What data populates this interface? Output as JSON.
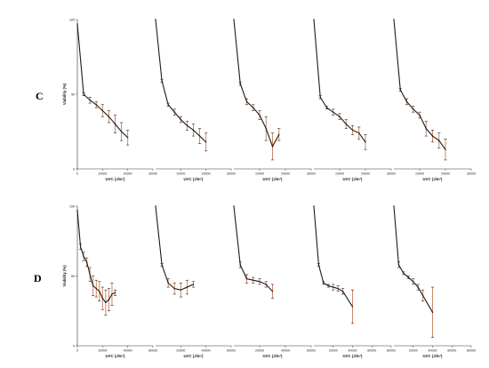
{
  "rows": [
    {
      "label": "C"
    },
    {
      "label": "D"
    }
  ],
  "colors": {
    "line": "#1a1a1a",
    "error_bar": "#c87b55",
    "axis": "#333333"
  },
  "chart_data": [
    {
      "type": "line",
      "row": "C",
      "panel": 1,
      "xlabel": "UVC (J/m²)",
      "ylabel": "Viability (%)",
      "xlim": [
        0,
        30000
      ],
      "ylim": [
        0,
        100
      ],
      "x_ticks": [
        0,
        10000,
        20000,
        30000
      ],
      "y_ticks": [
        0,
        50,
        100
      ],
      "show_y_axis": true,
      "show_x_tick_zero": true,
      "x": [
        0,
        2500,
        5000,
        7500,
        10000,
        12500,
        15000,
        17500,
        20000
      ],
      "y": [
        97,
        50,
        46,
        43,
        39,
        35,
        30,
        25,
        21
      ],
      "err": [
        0,
        1,
        2,
        2,
        4,
        4,
        6,
        6,
        5
      ]
    },
    {
      "type": "line",
      "row": "C",
      "panel": 2,
      "xlabel": "UVC (J/m²)",
      "xlim": [
        0,
        30000
      ],
      "ylim": [
        0,
        100
      ],
      "x_ticks": [
        10000,
        20000,
        30000
      ],
      "show_y_axis": false,
      "show_x_tick_zero": false,
      "x": [
        0,
        2500,
        5000,
        7500,
        10000,
        12500,
        15000,
        17500,
        20000
      ],
      "y": [
        100,
        59,
        43,
        38,
        33,
        29,
        26,
        22,
        18
      ],
      "err": [
        0,
        1,
        1,
        2,
        2,
        3,
        4,
        5,
        6
      ]
    },
    {
      "type": "line",
      "row": "C",
      "panel": 3,
      "xlabel": "UVC (J/m²)",
      "xlim": [
        0,
        30000
      ],
      "ylim": [
        0,
        100
      ],
      "x_ticks": [
        10000,
        20000,
        30000
      ],
      "show_y_axis": false,
      "show_x_tick_zero": false,
      "x": [
        0,
        2500,
        5000,
        7500,
        10000,
        12500,
        15000,
        17500
      ],
      "y": [
        100,
        57,
        45,
        41,
        36,
        27,
        15,
        23
      ],
      "err": [
        0,
        1,
        2,
        2,
        3,
        8,
        9,
        4
      ]
    },
    {
      "type": "line",
      "row": "C",
      "panel": 4,
      "xlabel": "UVC (J/m²)",
      "xlim": [
        0,
        30000
      ],
      "ylim": [
        0,
        100
      ],
      "x_ticks": [
        10000,
        20000,
        30000
      ],
      "show_y_axis": false,
      "show_x_tick_zero": false,
      "x": [
        0,
        2500,
        5000,
        7500,
        10000,
        12500,
        15000,
        17500,
        20000
      ],
      "y": [
        100,
        48,
        41,
        38,
        35,
        30,
        26,
        24,
        18
      ],
      "err": [
        0,
        1,
        1,
        2,
        2,
        3,
        3,
        4,
        5
      ]
    },
    {
      "type": "line",
      "row": "C",
      "panel": 5,
      "xlabel": "UVC (J/m²)",
      "xlim": [
        0,
        30000
      ],
      "ylim": [
        0,
        100
      ],
      "x_ticks": [
        10000,
        20000,
        30000
      ],
      "show_y_axis": false,
      "show_x_tick_zero": false,
      "x": [
        0,
        2500,
        5000,
        7500,
        10000,
        12500,
        15000,
        17500,
        20000
      ],
      "y": [
        100,
        53,
        45,
        40,
        36,
        27,
        22,
        19,
        13
      ],
      "err": [
        0,
        1,
        2,
        2,
        2,
        5,
        4,
        5,
        7
      ]
    },
    {
      "type": "line",
      "row": "D",
      "panel": 1,
      "xlabel": "UVC (J/m²)",
      "ylabel": "Viability (%)",
      "xlim": [
        0,
        60000
      ],
      "ylim": [
        0,
        100
      ],
      "x_ticks": [
        0,
        20000,
        40000,
        60000
      ],
      "y_ticks": [
        0,
        50,
        100
      ],
      "show_y_axis": true,
      "show_x_tick_zero": true,
      "x": [
        0,
        2500,
        5000,
        7500,
        10000,
        12500,
        15000,
        17500,
        20000,
        22500,
        25000,
        27500,
        30000
      ],
      "y": [
        97,
        71,
        64,
        60,
        51,
        43,
        41,
        39,
        34,
        31,
        33,
        37,
        38
      ],
      "err": [
        0,
        2,
        3,
        3,
        5,
        7,
        6,
        7,
        8,
        9,
        8,
        8,
        2
      ]
    },
    {
      "type": "line",
      "row": "D",
      "panel": 2,
      "xlabel": "UVC (J/m²)",
      "xlim": [
        0,
        60000
      ],
      "ylim": [
        0,
        100
      ],
      "x_ticks": [
        20000,
        40000,
        60000
      ],
      "show_y_axis": false,
      "show_x_tick_zero": false,
      "x": [
        0,
        5000,
        10000,
        15000,
        20000,
        25000,
        30000
      ],
      "y": [
        100,
        58,
        45,
        41,
        40,
        42,
        44
      ],
      "err": [
        0,
        1,
        3,
        4,
        5,
        5,
        2
      ]
    },
    {
      "type": "line",
      "row": "D",
      "panel": 3,
      "xlabel": "UVC (J/m²)",
      "xlim": [
        0,
        60000
      ],
      "ylim": [
        0,
        100
      ],
      "x_ticks": [
        20000,
        40000,
        60000
      ],
      "show_y_axis": false,
      "show_x_tick_zero": false,
      "x": [
        0,
        5000,
        10000,
        15000,
        20000,
        25000,
        30000
      ],
      "y": [
        100,
        58,
        48,
        47,
        46,
        44,
        39
      ],
      "err": [
        0,
        2,
        3,
        2,
        2,
        2,
        5
      ]
    },
    {
      "type": "line",
      "row": "D",
      "panel": 4,
      "xlabel": "UVC (J/m²)",
      "xlim": [
        0,
        80000
      ],
      "ylim": [
        0,
        100
      ],
      "x_ticks": [
        20000,
        40000,
        60000,
        80000
      ],
      "show_y_axis": false,
      "show_x_tick_zero": false,
      "x": [
        0,
        5000,
        10000,
        15000,
        20000,
        25000,
        30000,
        40000
      ],
      "y": [
        100,
        58,
        45,
        43,
        42,
        41,
        39,
        28
      ],
      "err": [
        0,
        1,
        1,
        1,
        2,
        2,
        2,
        12
      ]
    },
    {
      "type": "line",
      "row": "D",
      "panel": 5,
      "xlabel": "UVC (J/m²)",
      "xlim": [
        0,
        80000
      ],
      "ylim": [
        0,
        100
      ],
      "x_ticks": [
        20000,
        40000,
        60000,
        80000
      ],
      "show_y_axis": false,
      "show_x_tick_zero": false,
      "x": [
        0,
        5000,
        10000,
        15000,
        20000,
        25000,
        30000,
        40000
      ],
      "y": [
        100,
        58,
        52,
        49,
        46,
        42,
        36,
        24
      ],
      "err": [
        0,
        2,
        1,
        1,
        2,
        2,
        4,
        18
      ]
    }
  ]
}
